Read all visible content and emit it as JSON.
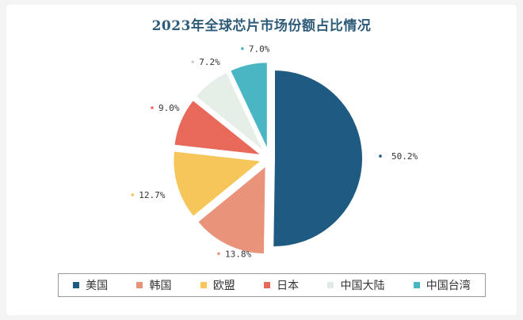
{
  "chart_data": {
    "type": "pie",
    "title": "2023年全球芯片市场份额占比情况",
    "categories": [
      "美国",
      "韩国",
      "欧盟",
      "日本",
      "中国大陆",
      "中国台湾"
    ],
    "values": [
      50.2,
      13.8,
      12.7,
      9.0,
      7.2,
      7.0
    ],
    "data_labels": [
      "50.2%",
      "13.8%",
      "12.7%",
      "9.0%",
      "7.2%",
      "7.0%"
    ],
    "colors": [
      "#1f5a82",
      "#e8937a",
      "#f6c65b",
      "#e8685a",
      "#e6eee8",
      "#4ab6c4"
    ],
    "legend_position": "bottom",
    "exploded": true
  }
}
